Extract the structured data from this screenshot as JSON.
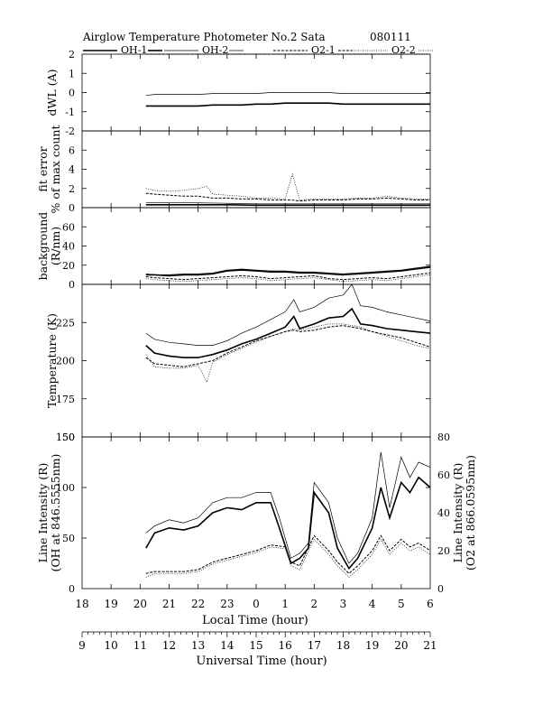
{
  "header": {
    "title": "Airglow Temperature Photometer No.2  Sata",
    "date": "080111"
  },
  "legend": [
    {
      "label": "OH-1",
      "style": "thick"
    },
    {
      "label": "OH-2",
      "style": "thin"
    },
    {
      "label": "O2-1",
      "style": "dashed"
    },
    {
      "label": "O2-2",
      "style": "dotted"
    }
  ],
  "axes": {
    "local_time_label": "Local Time (hour)",
    "universal_time_label": "Universal Time (hour)",
    "local_ticks": [
      "18",
      "19",
      "20",
      "21",
      "22",
      "23",
      "0",
      "1",
      "2",
      "3",
      "4",
      "5",
      "6"
    ],
    "universal_ticks": [
      "9",
      "10",
      "11",
      "12",
      "13",
      "14",
      "15",
      "16",
      "17",
      "18",
      "19",
      "20",
      "21"
    ]
  },
  "chart_data": [
    {
      "type": "line",
      "ylabel": "dWL (A)",
      "ylim": [
        -2,
        2
      ],
      "yticks": [
        "2",
        "1",
        "0",
        "-1",
        "-2"
      ],
      "x_unit": "universal time (hour)",
      "series": [
        {
          "name": "OH-1",
          "x": [
            11.2,
            11.5,
            12,
            12.5,
            13,
            13.5,
            14,
            14.5,
            15,
            15.5,
            16,
            16.5,
            17,
            17.5,
            18,
            18.5,
            19,
            19.5,
            20,
            20.5,
            21
          ],
          "values": [
            -0.7,
            -0.7,
            -0.7,
            -0.7,
            -0.7,
            -0.65,
            -0.65,
            -0.65,
            -0.6,
            -0.6,
            -0.55,
            -0.55,
            -0.55,
            -0.55,
            -0.6,
            -0.6,
            -0.6,
            -0.6,
            -0.6,
            -0.6,
            -0.6
          ]
        },
        {
          "name": "OH-2",
          "x": [
            11.2,
            11.5,
            12,
            12.5,
            13,
            13.5,
            14,
            14.5,
            15,
            15.5,
            16,
            16.5,
            17,
            17.5,
            18,
            18.5,
            19,
            19.5,
            20,
            20.5,
            21
          ],
          "values": [
            -0.15,
            -0.1,
            -0.1,
            -0.1,
            -0.1,
            -0.05,
            -0.05,
            -0.05,
            -0.05,
            0,
            0,
            0,
            0,
            0,
            -0.05,
            -0.05,
            -0.05,
            -0.05,
            -0.05,
            -0.05,
            -0.05
          ]
        },
        {
          "name": "O2-1",
          "x": [
            11.2,
            21
          ],
          "values": [
            2,
            2
          ]
        },
        {
          "name": "O2-2",
          "x": [
            11.2,
            21
          ],
          "values": [
            2,
            2
          ]
        }
      ]
    },
    {
      "type": "line",
      "ylabel": "fit error",
      "ylabel2": "% of max count",
      "ylim": [
        0,
        8
      ],
      "yticks": [
        "6",
        "4",
        "2",
        "0"
      ],
      "x_unit": "universal time (hour)",
      "series": [
        {
          "name": "OH-1",
          "x": [
            11.2,
            12,
            13,
            14,
            15,
            16,
            17,
            18,
            19,
            20,
            21
          ],
          "values": [
            0.3,
            0.3,
            0.3,
            0.3,
            0.25,
            0.25,
            0.25,
            0.25,
            0.25,
            0.25,
            0.25
          ]
        },
        {
          "name": "OH-2",
          "x": [
            11.2,
            12,
            13,
            14,
            15,
            16,
            17,
            18,
            19,
            20,
            21
          ],
          "values": [
            0.5,
            0.5,
            0.5,
            0.45,
            0.4,
            0.4,
            0.4,
            0.4,
            0.4,
            0.4,
            0.4
          ]
        },
        {
          "name": "O2-1",
          "x": [
            11.2,
            11.5,
            12,
            12.5,
            13,
            13.5,
            14,
            14.5,
            15,
            15.5,
            16,
            16.2,
            16.5,
            17,
            17.5,
            18,
            18.5,
            19,
            19.5,
            20,
            20.5,
            21
          ],
          "values": [
            1.5,
            1.4,
            1.3,
            1.2,
            1.2,
            1.0,
            1.0,
            0.9,
            0.9,
            0.8,
            0.8,
            0.8,
            0.7,
            0.8,
            0.8,
            0.8,
            0.9,
            0.9,
            1.0,
            0.9,
            0.8,
            0.8
          ]
        },
        {
          "name": "O2-2",
          "x": [
            11.2,
            11.5,
            12,
            12.5,
            13,
            13.3,
            13.5,
            14,
            14.5,
            15,
            15.5,
            16,
            16.25,
            16.5,
            17,
            17.5,
            18,
            18.5,
            19,
            19.5,
            20,
            20.5,
            21
          ],
          "values": [
            2.0,
            1.8,
            1.7,
            1.8,
            2.0,
            2.2,
            1.4,
            1.3,
            1.2,
            1.0,
            1.0,
            0.9,
            3.5,
            0.8,
            0.9,
            0.9,
            0.9,
            1.0,
            1.0,
            1.2,
            1.0,
            0.9,
            0.9
          ]
        }
      ]
    },
    {
      "type": "line",
      "ylabel": "background",
      "ylabel2": "(R/nm)",
      "ylim": [
        0,
        80
      ],
      "yticks": [
        "60",
        "40",
        "20",
        "0"
      ],
      "x_unit": "universal time (hour)",
      "series": [
        {
          "name": "OH-1",
          "x": [
            11.2,
            11.5,
            12,
            12.5,
            13,
            13.5,
            14,
            14.5,
            15,
            15.5,
            16,
            16.5,
            17,
            17.5,
            18,
            18.5,
            19,
            19.5,
            20,
            20.5,
            21
          ],
          "values": [
            10,
            10,
            9,
            10,
            10,
            11,
            14,
            15,
            14,
            13,
            13,
            12,
            12,
            11,
            10,
            11,
            12,
            13,
            14,
            16,
            18
          ]
        },
        {
          "name": "OH-2",
          "x": [
            11.2,
            11.5,
            12,
            12.5,
            13,
            13.5,
            14,
            14.5,
            15,
            15.5,
            16,
            16.5,
            17,
            17.5,
            18,
            18.5,
            19,
            19.5,
            20,
            20.5,
            21
          ],
          "values": [
            11,
            10,
            10,
            11,
            11,
            12,
            15,
            16,
            15,
            14,
            14,
            13,
            13,
            12,
            11,
            12,
            13,
            14,
            15,
            17,
            19
          ]
        },
        {
          "name": "O2-1",
          "x": [
            11.2,
            11.5,
            12,
            12.5,
            13,
            13.5,
            14,
            14.5,
            15,
            15.5,
            16,
            16.5,
            17,
            17.5,
            18,
            18.5,
            19,
            19.5,
            20,
            20.5,
            21
          ],
          "values": [
            8,
            7,
            6,
            5,
            6,
            7,
            8,
            9,
            8,
            6,
            7,
            8,
            9,
            6,
            5,
            6,
            7,
            6,
            8,
            10,
            12
          ]
        },
        {
          "name": "O2-2",
          "x": [
            11.2,
            11.5,
            12,
            12.5,
            13,
            13.5,
            14,
            14.5,
            15,
            15.5,
            16,
            16.5,
            17,
            17.5,
            18,
            18.5,
            19,
            19.5,
            20,
            20.5,
            21
          ],
          "values": [
            6,
            5,
            4,
            3,
            4,
            5,
            6,
            7,
            6,
            4,
            5,
            6,
            7,
            5,
            3,
            4,
            5,
            4,
            6,
            8,
            10
          ]
        }
      ]
    },
    {
      "type": "line",
      "ylabel": "Temperature (K)",
      "ylim": [
        150,
        250
      ],
      "yticks": [
        "225",
        "200",
        "175",
        "150"
      ],
      "x_unit": "universal time (hour)",
      "series": [
        {
          "name": "OH-1",
          "x": [
            11.2,
            11.5,
            12,
            12.5,
            13,
            13.5,
            14,
            14.5,
            15,
            15.5,
            16,
            16.3,
            16.5,
            17,
            17.5,
            18,
            18.3,
            18.6,
            19,
            19.5,
            20,
            20.5,
            21
          ],
          "values": [
            210,
            205,
            203,
            202,
            202,
            204,
            207,
            211,
            214,
            218,
            222,
            229,
            221,
            224,
            228,
            229,
            234,
            224,
            223,
            221,
            220,
            219,
            218
          ]
        },
        {
          "name": "OH-2",
          "x": [
            11.2,
            11.5,
            12,
            12.5,
            13,
            13.5,
            14,
            14.5,
            15,
            15.5,
            16,
            16.3,
            16.5,
            17,
            17.5,
            18,
            18.3,
            18.6,
            19,
            19.5,
            20,
            20.5,
            21
          ],
          "values": [
            218,
            214,
            212,
            211,
            210,
            210,
            213,
            218,
            222,
            227,
            232,
            240,
            232,
            235,
            241,
            243,
            250,
            236,
            235,
            232,
            230,
            228,
            226
          ]
        },
        {
          "name": "O2-1",
          "x": [
            11.2,
            11.5,
            12,
            12.5,
            13,
            13.5,
            14,
            14.5,
            15,
            15.5,
            16,
            16.3,
            16.5,
            17,
            17.5,
            18,
            18.3,
            18.6,
            19,
            19.5,
            20,
            20.5,
            21
          ],
          "values": [
            202,
            198,
            197,
            196,
            198,
            200,
            205,
            209,
            213,
            216,
            219,
            220,
            219,
            220,
            222,
            223,
            222,
            221,
            219,
            217,
            215,
            212,
            209
          ]
        },
        {
          "name": "O2-2",
          "x": [
            11.2,
            11.5,
            12,
            12.5,
            13,
            13.3,
            13.5,
            14,
            14.5,
            15,
            15.5,
            16,
            16.3,
            16.5,
            17,
            17.5,
            18,
            18.3,
            18.6,
            19,
            19.5,
            20,
            20.5,
            21
          ],
          "values": [
            204,
            196,
            195,
            195,
            197,
            186,
            199,
            204,
            208,
            212,
            216,
            219,
            221,
            220,
            222,
            224,
            224,
            223,
            222,
            219,
            216,
            213,
            210,
            208
          ]
        }
      ]
    },
    {
      "type": "line",
      "ylabel": "Line Intensity (R)",
      "ylabel2": "(OH at 846.5555nm)",
      "ylabel_right": "Line Intensity (R)",
      "ylabel_right2": "(O2 at 866.0595nm)",
      "ylim": [
        0,
        150
      ],
      "y2lim": [
        0,
        80
      ],
      "yticks": [
        "150",
        "100",
        "50",
        "0"
      ],
      "y2ticks": [
        "80",
        "60",
        "40",
        "20",
        "0"
      ],
      "x_unit": "universal time (hour)",
      "series": [
        {
          "name": "OH-1",
          "x": [
            11.2,
            11.5,
            12,
            12.5,
            13,
            13.5,
            14,
            14.5,
            15,
            15.5,
            15.8,
            16.2,
            16.5,
            16.8,
            17,
            17.5,
            17.8,
            18.2,
            18.5,
            19,
            19.3,
            19.6,
            20,
            20.3,
            20.6,
            21
          ],
          "values": [
            40,
            55,
            60,
            58,
            62,
            75,
            80,
            78,
            85,
            85,
            60,
            25,
            30,
            40,
            95,
            75,
            40,
            20,
            30,
            60,
            100,
            70,
            105,
            95,
            110,
            100
          ]
        },
        {
          "name": "OH-2",
          "x": [
            11.2,
            11.5,
            12,
            12.5,
            13,
            13.5,
            14,
            14.5,
            15,
            15.5,
            15.8,
            16.2,
            16.5,
            16.8,
            17,
            17.5,
            17.8,
            18.2,
            18.5,
            19,
            19.3,
            19.6,
            20,
            20.3,
            20.6,
            21
          ],
          "values": [
            55,
            62,
            68,
            65,
            70,
            85,
            90,
            90,
            95,
            95,
            70,
            30,
            35,
            45,
            105,
            85,
            50,
            25,
            35,
            70,
            135,
            80,
            130,
            110,
            125,
            120
          ]
        },
        {
          "name": "O2-1",
          "x": [
            11.2,
            11.5,
            12,
            12.5,
            13,
            13.5,
            14,
            14.5,
            15,
            15.5,
            16,
            16.2,
            16.5,
            17,
            17.5,
            17.8,
            18.2,
            18.5,
            19,
            19.3,
            19.6,
            20,
            20.3,
            20.6,
            21
          ],
          "values": [
            8,
            9,
            9,
            9,
            10,
            14,
            16,
            18,
            20,
            23,
            22,
            14,
            12,
            28,
            20,
            14,
            8,
            12,
            20,
            28,
            20,
            26,
            22,
            24,
            20
          ]
        },
        {
          "name": "O2-2",
          "x": [
            11.2,
            11.5,
            12,
            12.5,
            13,
            13.5,
            14,
            14.5,
            15,
            15.5,
            16,
            16.2,
            16.5,
            17,
            17.5,
            17.8,
            18.2,
            18.5,
            19,
            19.3,
            19.6,
            20,
            20.3,
            20.6,
            21
          ],
          "values": [
            6,
            8,
            8,
            8,
            9,
            13,
            15,
            17,
            19,
            22,
            21,
            12,
            10,
            26,
            18,
            12,
            6,
            10,
            18,
            26,
            18,
            24,
            20,
            22,
            18
          ]
        }
      ]
    }
  ]
}
